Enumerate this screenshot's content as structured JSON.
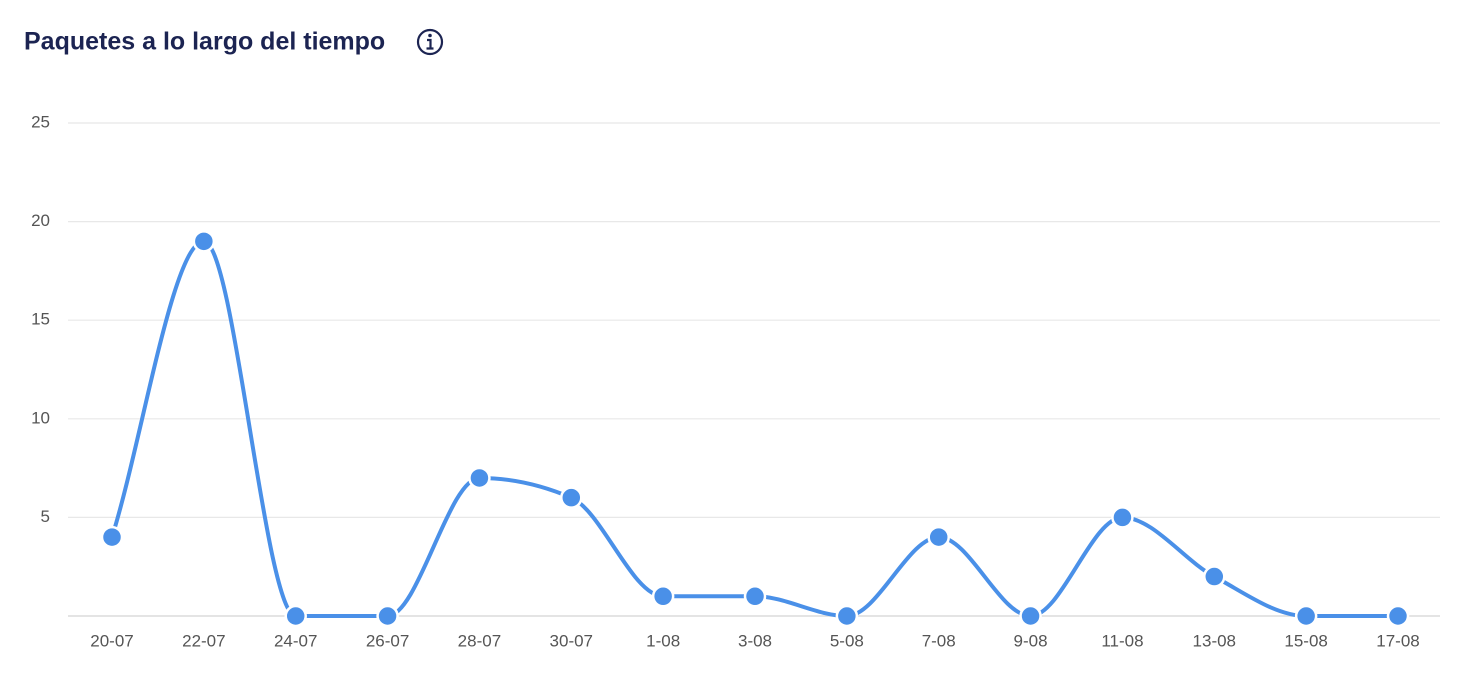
{
  "chart_data": {
    "type": "line",
    "title": "Paquetes a lo largo del tiempo",
    "categories": [
      "20-07",
      "22-07",
      "24-07",
      "26-07",
      "28-07",
      "30-07",
      "1-08",
      "3-08",
      "5-08",
      "7-08",
      "9-08",
      "11-08",
      "13-08",
      "15-08",
      "17-08"
    ],
    "series": [
      {
        "color": "#4a90e8",
        "values": [
          4,
          19,
          0,
          0,
          7,
          6,
          1,
          1,
          0,
          4,
          0,
          5,
          2,
          0,
          0
        ]
      }
    ],
    "ylim": [
      0,
      25
    ],
    "yticks": [
      5,
      10,
      15,
      20,
      25
    ],
    "grid": true
  }
}
